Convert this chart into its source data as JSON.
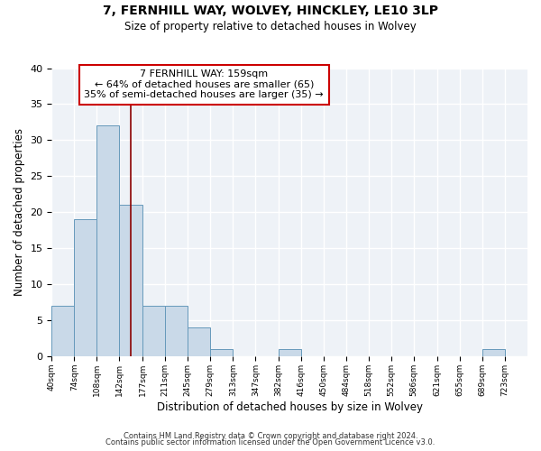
{
  "title": "7, FERNHILL WAY, WOLVEY, HINCKLEY, LE10 3LP",
  "subtitle": "Size of property relative to detached houses in Wolvey",
  "xlabel": "Distribution of detached houses by size in Wolvey",
  "ylabel": "Number of detached properties",
  "bar_edges": [
    40,
    74,
    108,
    142,
    177,
    211,
    245,
    279,
    313,
    347,
    382,
    416,
    450,
    484,
    518,
    552,
    586,
    621,
    655,
    689,
    723
  ],
  "bar_heights": [
    7,
    19,
    32,
    21,
    7,
    7,
    4,
    1,
    0,
    0,
    1,
    0,
    0,
    0,
    0,
    0,
    0,
    0,
    0,
    1
  ],
  "bar_color": "#c9d9e8",
  "bar_edge_color": "#6699bb",
  "property_line_x": 159,
  "property_line_color": "#8b0000",
  "annotation_text_line1": "7 FERNHILL WAY: 159sqm",
  "annotation_text_line2": "← 64% of detached houses are smaller (65)",
  "annotation_text_line3": "35% of semi-detached houses are larger (35) →",
  "annotation_box_edge_color": "#cc0000",
  "ylim": [
    0,
    40
  ],
  "yticks": [
    0,
    5,
    10,
    15,
    20,
    25,
    30,
    35,
    40
  ],
  "background_color": "#eef2f7",
  "footer_line1": "Contains HM Land Registry data © Crown copyright and database right 2024.",
  "footer_line2": "Contains public sector information licensed under the Open Government Licence v3.0.",
  "tick_labels": [
    "40sqm",
    "74sqm",
    "108sqm",
    "142sqm",
    "177sqm",
    "211sqm",
    "245sqm",
    "279sqm",
    "313sqm",
    "347sqm",
    "382sqm",
    "416sqm",
    "450sqm",
    "484sqm",
    "518sqm",
    "552sqm",
    "586sqm",
    "621sqm",
    "655sqm",
    "689sqm",
    "723sqm"
  ],
  "figsize": [
    6.0,
    5.0
  ],
  "dpi": 100
}
